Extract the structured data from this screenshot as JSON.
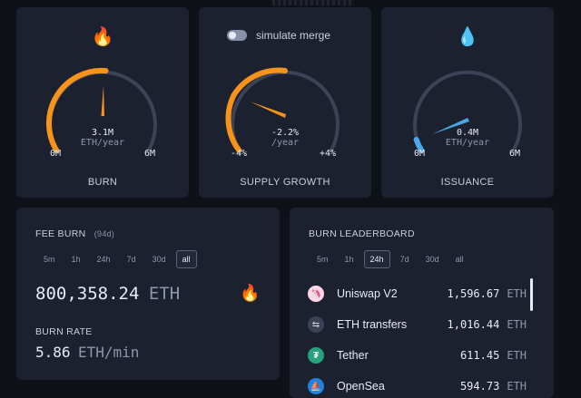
{
  "gauges": {
    "burn": {
      "emoji": "🔥",
      "value": "3.1M",
      "unit": "ETH/year",
      "min": "0M",
      "max": "6M",
      "label": "BURN"
    },
    "supply": {
      "toggle_label": "simulate merge",
      "value": "-2.2%",
      "unit": "/year",
      "min": "-4%",
      "max": "+4%",
      "label": "SUPPLY GROWTH"
    },
    "issuance": {
      "emoji": "💧",
      "value": "0.4M",
      "unit": "ETH/year",
      "min": "0M",
      "max": "6M",
      "label": "ISSUANCE"
    }
  },
  "fee_burn": {
    "title": "FEE BURN",
    "period": "(94d)",
    "tabs": [
      "5m",
      "1h",
      "24h",
      "7d",
      "30d",
      "all"
    ],
    "active_tab": "all",
    "amount": "800,358.24",
    "amount_unit": "ETH",
    "emoji": "🔥",
    "rate_label": "BURN RATE",
    "rate": "5.86",
    "rate_unit": "ETH/min"
  },
  "leaderboard": {
    "title": "BURN LEADERBOARD",
    "tabs": [
      "5m",
      "1h",
      "24h",
      "7d",
      "30d",
      "all"
    ],
    "active_tab": "24h",
    "unit": "ETH",
    "rows": [
      {
        "name": "Uniswap V2",
        "value": "1,596.67",
        "icon": "uniswap-icon",
        "icon_color": "#ff007a"
      },
      {
        "name": "ETH transfers",
        "value": "1,016.44",
        "icon": "transfer-icon",
        "icon_color": "#3b4256"
      },
      {
        "name": "Tether",
        "value": "611.45",
        "icon": "tether-icon",
        "icon_color": "#26a17b"
      },
      {
        "name": "OpenSea",
        "value": "594.73",
        "icon": "opensea-icon",
        "icon_color": "#2081e2"
      }
    ]
  },
  "colors": {
    "orange": "#f7931a",
    "blue": "#4aa8e8",
    "track": "#3c4357"
  }
}
